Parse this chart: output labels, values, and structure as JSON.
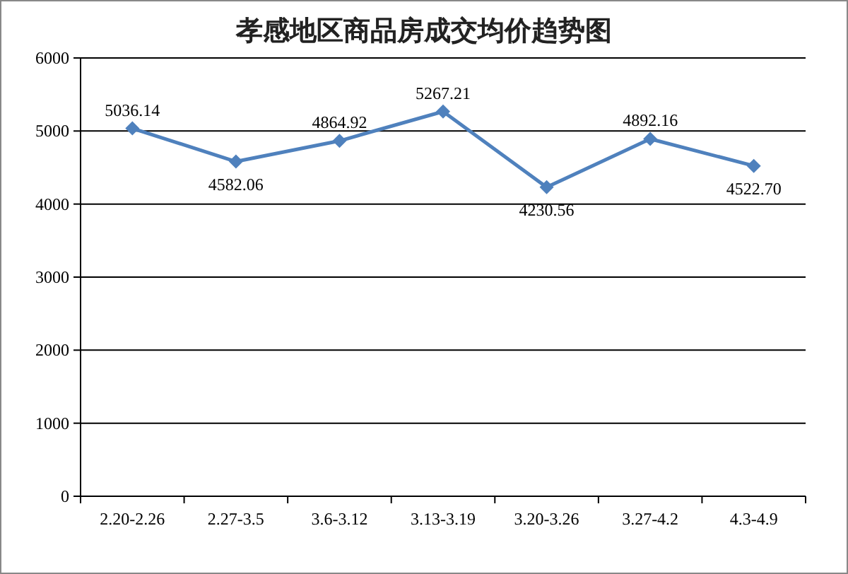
{
  "chart_data": {
    "type": "line",
    "title": "孝感地区商品房成交均价趋势图",
    "categories": [
      "2.20-2.26",
      "2.27-3.5",
      "3.6-3.12",
      "3.13-3.19",
      "3.20-3.26",
      "3.27-4.2",
      "4.3-4.9"
    ],
    "values": [
      5036.14,
      4582.06,
      4864.92,
      5267.21,
      4230.56,
      4892.16,
      4522.7
    ],
    "value_labels": [
      "5036.14",
      "4582.06",
      "4864.92",
      "5267.21",
      "4230.56",
      "4892.16",
      "4522.70"
    ],
    "color": "#4f81bd",
    "ylim": [
      0,
      6000
    ],
    "yticks": [
      0,
      1000,
      2000,
      3000,
      4000,
      5000,
      6000
    ],
    "grid": "y",
    "marker": "diamond",
    "line_style": "solid"
  }
}
